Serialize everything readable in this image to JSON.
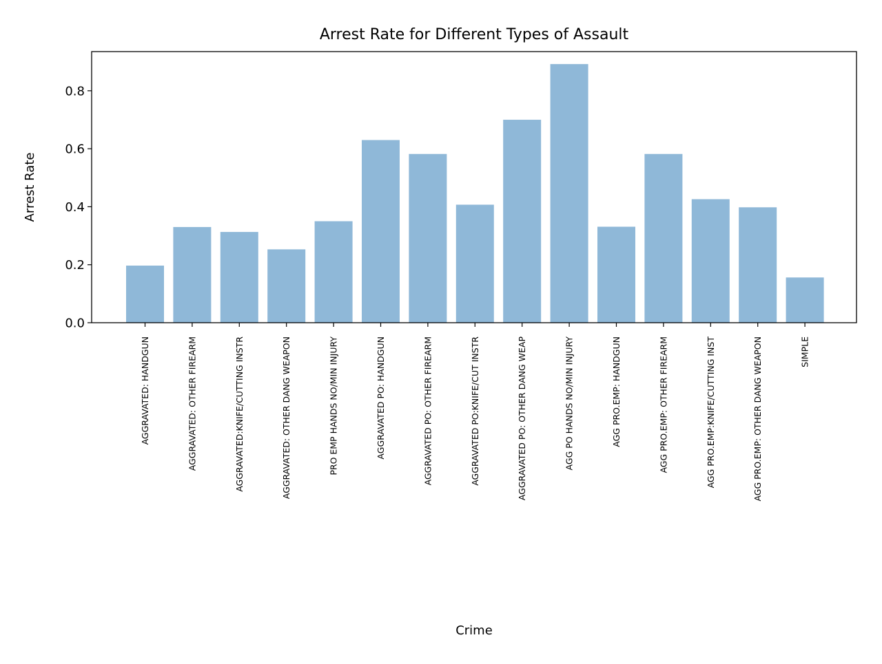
{
  "chart_data": {
    "type": "bar",
    "title": "Arrest Rate for Different Types of Assault",
    "xlabel": "Crime",
    "ylabel": "Arrest Rate",
    "ylim": [
      0,
      0.935
    ],
    "yticks": [
      "0.0",
      "0.2",
      "0.4",
      "0.6",
      "0.8"
    ],
    "categories": [
      "AGGRAVATED: HANDGUN",
      "AGGRAVATED: OTHER FIREARM",
      "AGGRAVATED:KNIFE/CUTTING INSTR",
      "AGGRAVATED: OTHER DANG WEAPON",
      "PRO EMP HANDS NO/MIN INJURY",
      "AGGRAVATED PO: HANDGUN",
      "AGGRAVATED PO: OTHER FIREARM",
      "AGGRAVATED PO:KNIFE/CUT INSTR",
      "AGGRAVATED PO: OTHER DANG WEAP",
      "AGG PO HANDS NO/MIN INJURY",
      "AGG PRO.EMP: HANDGUN",
      "AGG PRO.EMP: OTHER FIREARM",
      "AGG PRO.EMP:KNIFE/CUTTING INST",
      "AGG PRO.EMP: OTHER DANG WEAPON",
      "SIMPLE"
    ],
    "values": [
      0.197,
      0.33,
      0.313,
      0.253,
      0.35,
      0.63,
      0.582,
      0.407,
      0.7,
      0.892,
      0.331,
      0.582,
      0.426,
      0.398,
      0.156
    ],
    "bar_color": "#8fb8d8",
    "grid": false
  }
}
